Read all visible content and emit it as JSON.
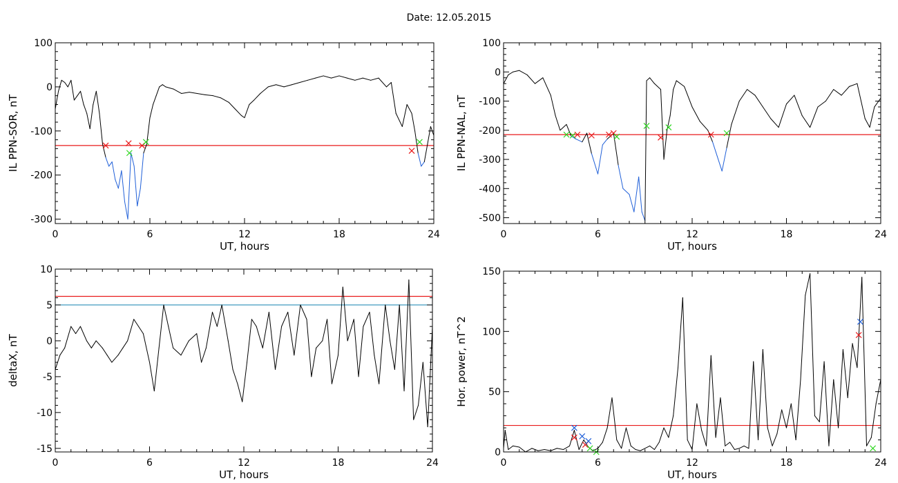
{
  "page": {
    "title": "Date:  12.05.2015"
  },
  "colors": {
    "trace": "#000000",
    "threshold_red": "#e8191a",
    "threshold_blue": "#2a8fb8",
    "below_threshold": "#1f5fd8",
    "mark_red": "#e8191a",
    "mark_green": "#2bd61c",
    "mark_blue": "#1f5fd8"
  },
  "chart_data": [
    {
      "id": "ppn_sor",
      "type": "line",
      "xlabel": "UT, hours",
      "ylabel": "IL PPN-SOR, nT",
      "xlim": [
        0,
        24
      ],
      "ylim": [
        -310,
        100
      ],
      "xticks": [
        0,
        6,
        12,
        18,
        24
      ],
      "yticks": [
        100,
        0,
        -100,
        -200,
        -300
      ],
      "thresholds": [
        {
          "value": -133,
          "color": "red"
        }
      ],
      "x": [
        0,
        0.2,
        0.4,
        0.6,
        0.8,
        1.0,
        1.2,
        1.4,
        1.6,
        1.8,
        2.0,
        2.2,
        2.4,
        2.6,
        2.8,
        3.0,
        3.2,
        3.4,
        3.6,
        3.8,
        4.0,
        4.2,
        4.4,
        4.6,
        4.8,
        5.0,
        5.2,
        5.4,
        5.6,
        5.8,
        6.0,
        6.2,
        6.4,
        6.6,
        6.8,
        7.0,
        7.5,
        8.0,
        8.5,
        9.0,
        9.5,
        10.0,
        10.5,
        11.0,
        11.4,
        11.8,
        12.0,
        12.3,
        12.6,
        13.0,
        13.5,
        14.0,
        14.5,
        15.0,
        15.5,
        16.0,
        16.5,
        17.0,
        17.5,
        18.0,
        18.5,
        19.0,
        19.5,
        20.0,
        20.5,
        21.0,
        21.3,
        21.6,
        22.0,
        22.3,
        22.6,
        22.8,
        23.0,
        23.2,
        23.4,
        23.6,
        23.8,
        24.0
      ],
      "values": [
        -50,
        -10,
        15,
        10,
        0,
        15,
        -30,
        -20,
        -10,
        -40,
        -60,
        -95,
        -40,
        -10,
        -60,
        -130,
        -160,
        -180,
        -170,
        -210,
        -230,
        -190,
        -260,
        -300,
        -150,
        -180,
        -270,
        -230,
        -150,
        -130,
        -70,
        -40,
        -20,
        0,
        5,
        0,
        -5,
        -15,
        -12,
        -15,
        -18,
        -20,
        -25,
        -35,
        -50,
        -65,
        -70,
        -40,
        -30,
        -15,
        0,
        5,
        0,
        5,
        10,
        15,
        20,
        25,
        20,
        25,
        20,
        15,
        20,
        15,
        20,
        0,
        10,
        -60,
        -90,
        -40,
        -60,
        -100,
        -150,
        -180,
        -170,
        -130,
        -90,
        -110
      ],
      "marks": [
        {
          "x": 3.2,
          "y": -133,
          "color": "red"
        },
        {
          "x": 4.65,
          "y": -128,
          "color": "red"
        },
        {
          "x": 4.7,
          "y": -150,
          "color": "green"
        },
        {
          "x": 5.5,
          "y": -133,
          "color": "red"
        },
        {
          "x": 5.75,
          "y": -125,
          "color": "green"
        },
        {
          "x": 22.6,
          "y": -145,
          "color": "red"
        },
        {
          "x": 23.1,
          "y": -125,
          "color": "green"
        }
      ]
    },
    {
      "id": "ppn_nal",
      "type": "line",
      "xlabel": "UT, hours",
      "ylabel": "IL PPN-NAL, nT",
      "xlim": [
        0,
        24
      ],
      "ylim": [
        -520,
        100
      ],
      "xticks": [
        0,
        6,
        12,
        18,
        24
      ],
      "yticks": [
        100,
        0,
        -100,
        -200,
        -300,
        -400,
        -500
      ],
      "thresholds": [
        {
          "value": -215,
          "color": "red"
        }
      ],
      "x": [
        0,
        0.3,
        0.6,
        1.0,
        1.5,
        2.0,
        2.5,
        3.0,
        3.3,
        3.6,
        4.0,
        4.3,
        4.6,
        5.0,
        5.3,
        5.6,
        6.0,
        6.3,
        6.6,
        7.0,
        7.3,
        7.6,
        8.0,
        8.3,
        8.6,
        8.8,
        9.0,
        9.1,
        9.3,
        9.6,
        10.0,
        10.2,
        10.4,
        10.6,
        10.8,
        11.0,
        11.5,
        12.0,
        12.5,
        13.0,
        13.3,
        13.6,
        13.9,
        14.2,
        14.5,
        15.0,
        15.5,
        16.0,
        16.5,
        17.0,
        17.5,
        18.0,
        18.5,
        19.0,
        19.5,
        20.0,
        20.5,
        21.0,
        21.5,
        22.0,
        22.5,
        23.0,
        23.3,
        23.6,
        24.0
      ],
      "values": [
        -40,
        -10,
        0,
        5,
        -10,
        -40,
        -20,
        -80,
        -150,
        -200,
        -180,
        -220,
        -230,
        -240,
        -210,
        -280,
        -350,
        -250,
        -230,
        -210,
        -320,
        -400,
        -420,
        -480,
        -360,
        -480,
        -510,
        -30,
        -20,
        -40,
        -60,
        -300,
        -200,
        -150,
        -60,
        -30,
        -50,
        -120,
        -170,
        -200,
        -240,
        -290,
        -340,
        -260,
        -180,
        -100,
        -60,
        -80,
        -120,
        -160,
        -190,
        -110,
        -80,
        -150,
        -190,
        -120,
        -100,
        -60,
        -80,
        -50,
        -40,
        -160,
        -190,
        -120,
        -90
      ],
      "marks": [
        {
          "x": 4.0,
          "y": -215,
          "color": "green"
        },
        {
          "x": 4.4,
          "y": -218,
          "color": "green"
        },
        {
          "x": 4.7,
          "y": -215,
          "color": "red"
        },
        {
          "x": 5.6,
          "y": -218,
          "color": "red"
        },
        {
          "x": 6.7,
          "y": -215,
          "color": "red"
        },
        {
          "x": 7.0,
          "y": -210,
          "color": "red"
        },
        {
          "x": 7.2,
          "y": -222,
          "color": "green"
        },
        {
          "x": 9.1,
          "y": -185,
          "color": "green"
        },
        {
          "x": 10.0,
          "y": -225,
          "color": "red"
        },
        {
          "x": 10.5,
          "y": -190,
          "color": "green"
        },
        {
          "x": 13.2,
          "y": -215,
          "color": "red"
        },
        {
          "x": 14.2,
          "y": -210,
          "color": "green"
        }
      ]
    },
    {
      "id": "delta_x",
      "type": "line",
      "xlabel": "UT, hours",
      "ylabel": "deltaX, nT",
      "xlim": [
        0,
        24
      ],
      "ylim": [
        -15.5,
        10
      ],
      "xticks": [
        0,
        6,
        12,
        18,
        24
      ],
      "yticks": [
        10,
        5,
        0,
        -5,
        -10,
        -15
      ],
      "thresholds": [
        {
          "value": 6.2,
          "color": "red"
        },
        {
          "value": 5.0,
          "color": "blue"
        }
      ],
      "x": [
        0,
        0.3,
        0.6,
        1.0,
        1.3,
        1.6,
        2.0,
        2.3,
        2.6,
        3.0,
        3.3,
        3.6,
        4.0,
        4.3,
        4.6,
        5.0,
        5.3,
        5.6,
        6.0,
        6.3,
        6.6,
        6.9,
        7.2,
        7.5,
        8.0,
        8.5,
        9.0,
        9.3,
        9.6,
        10.0,
        10.3,
        10.6,
        11.0,
        11.3,
        11.6,
        11.9,
        12.2,
        12.5,
        12.8,
        13.2,
        13.6,
        14.0,
        14.4,
        14.8,
        15.2,
        15.6,
        16.0,
        16.3,
        16.6,
        17.0,
        17.3,
        17.6,
        18.0,
        18.3,
        18.6,
        19.0,
        19.3,
        19.6,
        20.0,
        20.3,
        20.6,
        21.0,
        21.3,
        21.6,
        21.9,
        22.2,
        22.5,
        22.8,
        23.1,
        23.4,
        23.7,
        24.0
      ],
      "values": [
        -4,
        -2,
        -1,
        2,
        1,
        2,
        0,
        -1,
        0,
        -1,
        -2,
        -3,
        -2,
        -1,
        0,
        3,
        2,
        1,
        -3,
        -7,
        -1,
        5,
        2,
        -1,
        -2,
        0,
        1,
        -3,
        -1,
        4,
        2,
        5,
        0,
        -4,
        -6,
        -8.5,
        -3,
        3,
        2,
        -1,
        4,
        -4,
        2,
        4,
        -2,
        5,
        3,
        -5,
        -1,
        0,
        3,
        -6,
        -2,
        7.5,
        0,
        3,
        -5,
        2,
        4,
        -2,
        -6,
        5,
        0,
        -4,
        5,
        -7,
        8.5,
        -11,
        -9,
        -3,
        -12,
        2
      ],
      "marks": []
    },
    {
      "id": "hor_power",
      "type": "line",
      "xlabel": "UT, hours",
      "ylabel": "Hor. power, nT^2",
      "xlim": [
        0,
        24
      ],
      "ylim": [
        0,
        150
      ],
      "xticks": [
        0,
        6,
        12,
        18,
        24
      ],
      "yticks": [
        150,
        100,
        50,
        0
      ],
      "thresholds": [
        {
          "value": 22,
          "color": "red"
        }
      ],
      "x": [
        0,
        0.1,
        0.3,
        0.6,
        1.0,
        1.2,
        1.4,
        1.8,
        2.2,
        2.6,
        3.0,
        3.4,
        3.8,
        4.2,
        4.5,
        4.8,
        5.1,
        5.4,
        5.7,
        6.0,
        6.3,
        6.6,
        6.9,
        7.2,
        7.5,
        7.8,
        8.1,
        8.4,
        8.7,
        9.0,
        9.3,
        9.6,
        9.9,
        10.2,
        10.5,
        10.8,
        11.1,
        11.4,
        11.7,
        12.0,
        12.3,
        12.6,
        12.9,
        13.2,
        13.5,
        13.8,
        14.1,
        14.4,
        14.7,
        15.0,
        15.3,
        15.6,
        15.9,
        16.2,
        16.5,
        16.8,
        17.1,
        17.4,
        17.7,
        18.0,
        18.3,
        18.6,
        18.9,
        19.2,
        19.5,
        19.8,
        20.1,
        20.4,
        20.7,
        21.0,
        21.3,
        21.6,
        21.9,
        22.2,
        22.5,
        22.8,
        23.1,
        23.4,
        23.7,
        24.0
      ],
      "values": [
        3,
        18,
        2,
        5,
        4,
        2,
        0,
        3,
        1,
        2,
        1,
        3,
        2,
        5,
        18,
        2,
        10,
        4,
        1,
        3,
        8,
        20,
        45,
        10,
        3,
        20,
        5,
        2,
        1,
        3,
        5,
        2,
        8,
        20,
        12,
        30,
        70,
        128,
        10,
        2,
        40,
        18,
        5,
        80,
        12,
        45,
        5,
        8,
        2,
        3,
        5,
        3,
        75,
        10,
        85,
        20,
        5,
        15,
        35,
        20,
        40,
        10,
        60,
        130,
        148,
        30,
        25,
        75,
        5,
        60,
        20,
        85,
        45,
        90,
        70,
        145,
        5,
        12,
        40,
        60
      ],
      "marks": [
        {
          "x": 4.5,
          "y": 20,
          "color": "blue"
        },
        {
          "x": 4.5,
          "y": 12,
          "color": "red"
        },
        {
          "x": 5.0,
          "y": 13,
          "color": "blue"
        },
        {
          "x": 5.2,
          "y": 6,
          "color": "red"
        },
        {
          "x": 5.4,
          "y": 9,
          "color": "blue"
        },
        {
          "x": 5.5,
          "y": 3,
          "color": "green"
        },
        {
          "x": 5.9,
          "y": 0,
          "color": "green"
        },
        {
          "x": 22.6,
          "y": 97,
          "color": "red"
        },
        {
          "x": 22.7,
          "y": 108,
          "color": "blue"
        },
        {
          "x": 23.5,
          "y": 3,
          "color": "green"
        }
      ]
    }
  ]
}
